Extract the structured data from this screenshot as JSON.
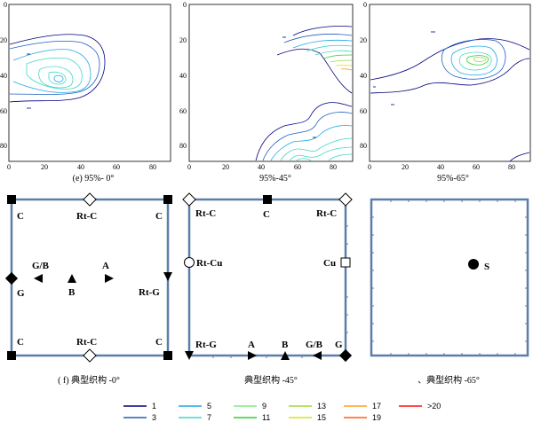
{
  "pole_figures": [
    {
      "caption": "(e) 95%- 0°",
      "x_ticks": [
        "0",
        "20",
        "40",
        "60",
        "80"
      ],
      "y_ticks": [
        "0",
        "20",
        "40",
        "60",
        "80"
      ]
    },
    {
      "caption": "95%-45°",
      "x_ticks": [
        "0",
        "20",
        "40",
        "60",
        "80"
      ],
      "y_ticks": [
        "0",
        "20",
        "40",
        "60",
        "80"
      ]
    },
    {
      "caption": "95%-65°",
      "x_ticks": [
        "0",
        "20",
        "40",
        "60",
        "80"
      ],
      "y_ticks": [
        "0",
        "20",
        "40",
        "60",
        "80"
      ]
    }
  ],
  "schematics": [
    {
      "caption": "( f) 典型织构 -0°",
      "labels": [
        "C",
        "Rt-C",
        "C",
        "G/B",
        "A",
        "G",
        "B",
        "Rt-G",
        "C",
        "Rt-C",
        "C"
      ]
    },
    {
      "caption": "典型织构 -45°",
      "labels": [
        "Rt-C",
        "C",
        "Rt-C",
        "Rt-Cu",
        "Cu",
        "Rt-G",
        "A",
        "B",
        "G/B",
        "G"
      ]
    },
    {
      "caption": "、典型织构 -65°",
      "labels": [
        "S"
      ]
    }
  ],
  "legend": {
    "items": [
      {
        "label": "1",
        "color": "#000080"
      },
      {
        "label": "3",
        "color": "#1f5fbf"
      },
      {
        "label": "5",
        "color": "#1fa8e8"
      },
      {
        "label": "7",
        "color": "#3fd8c8"
      },
      {
        "label": "9",
        "color": "#7fee7f"
      },
      {
        "label": "11",
        "color": "#2fcf2f"
      },
      {
        "label": "13",
        "color": "#9fd840"
      },
      {
        "label": "15",
        "color": "#d8e020"
      },
      {
        "label": "17",
        "color": "#ff9f20"
      },
      {
        "label": "19",
        "color": "#ff5f10"
      },
      {
        "label": ">20",
        "color": "#ff1010"
      }
    ]
  }
}
